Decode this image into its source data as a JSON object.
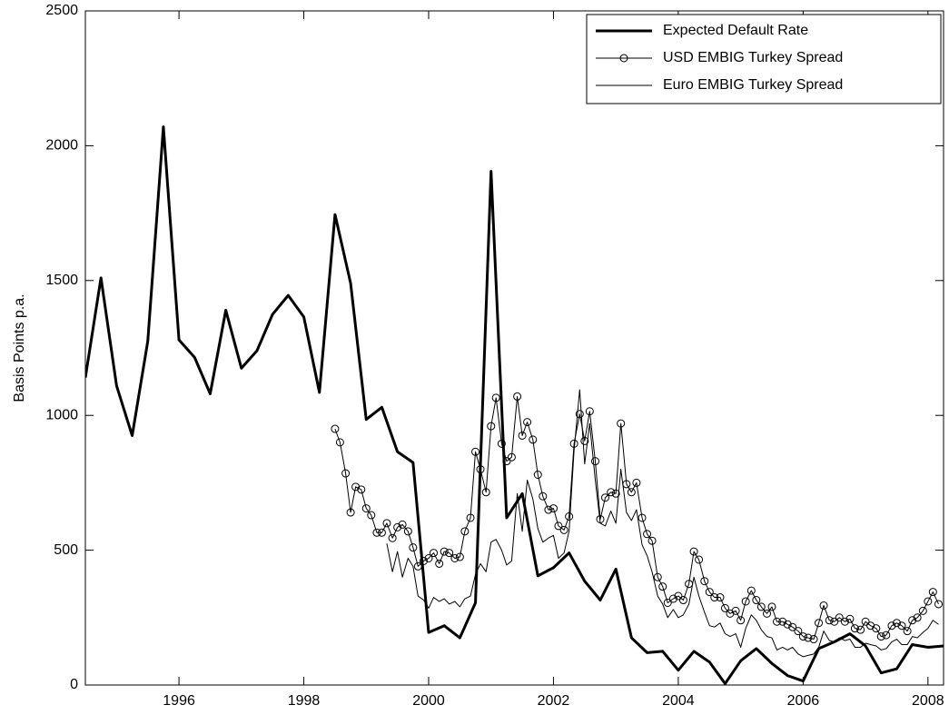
{
  "chart_data": {
    "type": "line",
    "ylabel": "Basis Points p.a.",
    "xlim": [
      1994.5,
      2008.25
    ],
    "ylim": [
      0,
      2500
    ],
    "xticks": [
      1996,
      1998,
      2000,
      2002,
      2004,
      2006,
      2008
    ],
    "yticks": [
      0,
      500,
      1000,
      1500,
      2000,
      2500
    ],
    "grid": false,
    "legend": "upper right",
    "series": [
      {
        "name": "Expected Default Rate",
        "color": "#000000",
        "linewidth": 3,
        "marker": "none",
        "x": [
          1994.5,
          1994.75,
          1995,
          1995.25,
          1995.5,
          1995.75,
          1996,
          1996.25,
          1996.5,
          1996.75,
          1997,
          1997.25,
          1997.5,
          1997.75,
          1998,
          1998.25,
          1998.5,
          1998.75,
          1999,
          1999.25,
          1999.5,
          1999.75,
          2000,
          2000.25,
          2000.5,
          2000.75,
          2001,
          2001.25,
          2001.5,
          2001.75,
          2002,
          2002.25,
          2002.5,
          2002.75,
          2003,
          2003.25,
          2003.5,
          2003.75,
          2004,
          2004.25,
          2004.5,
          2004.75,
          2005,
          2005.25,
          2005.5,
          2005.75,
          2006,
          2006.25,
          2006.5,
          2006.75,
          2007,
          2007.25,
          2007.5,
          2007.75,
          2008,
          2008.25
        ],
        "values": [
          1140,
          1510,
          1110,
          925,
          1275,
          2070,
          1280,
          1215,
          1080,
          1390,
          1175,
          1240,
          1375,
          1445,
          1365,
          1085,
          1745,
          1490,
          985,
          1030,
          865,
          825,
          195,
          220,
          175,
          305,
          1905,
          620,
          710,
          405,
          435,
          490,
          385,
          315,
          430,
          175,
          120,
          125,
          55,
          125,
          85,
          5,
          90,
          135,
          80,
          35,
          15,
          135,
          160,
          190,
          145,
          45,
          60,
          150,
          140,
          145
        ]
      },
      {
        "name": "USD EMBIG Turkey Spread",
        "color": "#000000",
        "linewidth": 1,
        "marker": "o",
        "x": [
          1998.5,
          1998.58,
          1998.67,
          1998.75,
          1998.83,
          1998.92,
          1999,
          1999.08,
          1999.17,
          1999.25,
          1999.33,
          1999.42,
          1999.5,
          1999.58,
          1999.67,
          1999.75,
          1999.83,
          1999.92,
          2000,
          2000.08,
          2000.17,
          2000.25,
          2000.33,
          2000.42,
          2000.5,
          2000.58,
          2000.67,
          2000.75,
          2000.83,
          2000.92,
          2001,
          2001.08,
          2001.17,
          2001.25,
          2001.33,
          2001.42,
          2001.5,
          2001.58,
          2001.67,
          2001.75,
          2001.83,
          2001.92,
          2002,
          2002.08,
          2002.17,
          2002.25,
          2002.33,
          2002.42,
          2002.5,
          2002.58,
          2002.67,
          2002.75,
          2002.83,
          2002.92,
          2003,
          2003.08,
          2003.17,
          2003.25,
          2003.33,
          2003.42,
          2003.5,
          2003.58,
          2003.67,
          2003.75,
          2003.83,
          2003.92,
          2004,
          2004.08,
          2004.17,
          2004.25,
          2004.33,
          2004.42,
          2004.5,
          2004.58,
          2004.67,
          2004.75,
          2004.83,
          2004.92,
          2005,
          2005.08,
          2005.17,
          2005.25,
          2005.33,
          2005.42,
          2005.5,
          2005.58,
          2005.67,
          2005.75,
          2005.83,
          2005.92,
          2006,
          2006.08,
          2006.17,
          2006.25,
          2006.33,
          2006.42,
          2006.5,
          2006.58,
          2006.67,
          2006.75,
          2006.83,
          2006.92,
          2007,
          2007.08,
          2007.17,
          2007.25,
          2007.33,
          2007.42,
          2007.5,
          2007.58,
          2007.67,
          2007.75,
          2007.83,
          2007.92,
          2008,
          2008.08,
          2008.17
        ],
        "values": [
          950,
          900,
          785,
          640,
          735,
          725,
          655,
          630,
          565,
          565,
          600,
          545,
          585,
          595,
          570,
          510,
          440,
          460,
          470,
          490,
          450,
          495,
          490,
          470,
          475,
          570,
          620,
          865,
          800,
          715,
          960,
          1065,
          895,
          830,
          845,
          1070,
          925,
          975,
          910,
          780,
          700,
          650,
          655,
          590,
          575,
          625,
          895,
          1005,
          905,
          1015,
          830,
          615,
          695,
          715,
          710,
          970,
          745,
          715,
          750,
          620,
          560,
          535,
          400,
          365,
          305,
          320,
          330,
          315,
          375,
          495,
          465,
          385,
          345,
          325,
          325,
          285,
          265,
          275,
          240,
          310,
          350,
          315,
          290,
          265,
          290,
          235,
          235,
          225,
          215,
          200,
          180,
          175,
          170,
          230,
          295,
          240,
          235,
          250,
          235,
          245,
          210,
          205,
          235,
          220,
          210,
          180,
          185,
          220,
          230,
          220,
          200,
          240,
          250,
          275,
          310,
          345,
          300
        ]
      },
      {
        "name": "Euro EMBIG Turkey Spread",
        "color": "#000000",
        "linewidth": 1,
        "marker": "none",
        "x": [
          1999.33,
          1999.42,
          1999.5,
          1999.58,
          1999.67,
          1999.75,
          1999.83,
          1999.92,
          2000,
          2000.08,
          2000.17,
          2000.25,
          2000.33,
          2000.42,
          2000.5,
          2000.58,
          2000.67,
          2000.75,
          2000.83,
          2000.92,
          2001,
          2001.08,
          2001.17,
          2001.25,
          2001.33,
          2001.42,
          2001.5,
          2001.58,
          2001.67,
          2001.75,
          2001.83,
          2001.92,
          2002,
          2002.08,
          2002.17,
          2002.25,
          2002.33,
          2002.42,
          2002.5,
          2002.58,
          2002.67,
          2002.75,
          2002.83,
          2002.92,
          2003,
          2003.08,
          2003.17,
          2003.25,
          2003.33,
          2003.42,
          2003.5,
          2003.58,
          2003.67,
          2003.75,
          2003.83,
          2003.92,
          2004,
          2004.08,
          2004.17,
          2004.25,
          2004.33,
          2004.42,
          2004.5,
          2004.58,
          2004.67,
          2004.75,
          2004.83,
          2004.92,
          2005,
          2005.08,
          2005.17,
          2005.25,
          2005.33,
          2005.42,
          2005.5,
          2005.58,
          2005.67,
          2005.75,
          2005.83,
          2005.92,
          2006,
          2006.08,
          2006.17,
          2006.25,
          2006.33,
          2006.42,
          2006.5,
          2006.58,
          2006.67,
          2006.75,
          2006.83,
          2006.92,
          2007,
          2007.08,
          2007.17,
          2007.25,
          2007.33,
          2007.42,
          2007.5,
          2007.58,
          2007.67,
          2007.75,
          2007.83,
          2007.92,
          2008,
          2008.08,
          2008.17
        ],
        "values": [
          525,
          420,
          495,
          400,
          470,
          440,
          330,
          315,
          285,
          325,
          310,
          320,
          300,
          310,
          290,
          320,
          330,
          410,
          450,
          420,
          530,
          540,
          500,
          445,
          460,
          710,
          570,
          760,
          690,
          580,
          530,
          545,
          555,
          470,
          490,
          570,
          870,
          1095,
          820,
          970,
          760,
          600,
          590,
          645,
          600,
          800,
          640,
          610,
          650,
          520,
          480,
          420,
          330,
          300,
          250,
          280,
          250,
          260,
          300,
          400,
          330,
          270,
          220,
          215,
          230,
          190,
          180,
          190,
          140,
          210,
          260,
          240,
          205,
          180,
          175,
          130,
          140,
          130,
          140,
          115,
          105,
          110,
          115,
          140,
          200,
          165,
          160,
          175,
          165,
          170,
          140,
          140,
          155,
          150,
          145,
          130,
          135,
          160,
          170,
          150,
          150,
          180,
          175,
          195,
          210,
          240,
          225
        ]
      }
    ]
  }
}
